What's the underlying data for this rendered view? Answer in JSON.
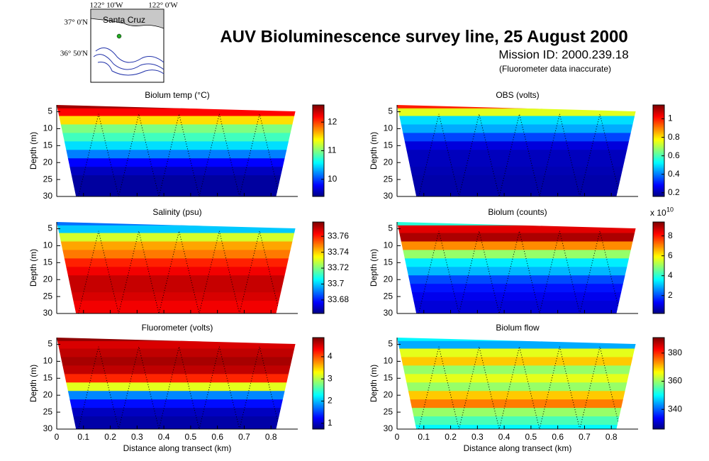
{
  "header": {
    "title": "AUV Bioluminescence survey line, 25 August 2000",
    "mission": "Mission ID: 2000.239.18",
    "note": "(Fluorometer data inaccurate)"
  },
  "map": {
    "lon_labels": [
      "122° 10'W",
      "122° 0'W"
    ],
    "lat_labels": [
      "37° 0'N",
      "36° 50'N"
    ],
    "place": "Santa Cruz"
  },
  "chart_data": [
    {
      "type": "heatmap",
      "title": "Biolum temp (°C)",
      "xlim": [
        0,
        0.9
      ],
      "xticks": [
        0,
        0.1,
        0.2,
        0.3,
        0.4,
        0.5,
        0.6,
        0.7,
        0.8
      ],
      "xticklabels": false,
      "ylim": [
        3,
        30
      ],
      "invert_y": true,
      "yticks": [
        5,
        10,
        15,
        20,
        25,
        30
      ],
      "ylabel": "Depth (m)",
      "y": [
        3,
        5,
        7.5,
        10,
        12.5,
        15,
        17.5,
        20,
        22.5,
        25,
        27.5,
        30
      ],
      "values": [
        12.5,
        12.2,
        11.5,
        11.0,
        10.8,
        10.5,
        10.2,
        9.8,
        9.6,
        9.5,
        9.5,
        9.5
      ],
      "clim": [
        9.4,
        12.6
      ],
      "cticks": [
        10,
        11,
        12
      ]
    },
    {
      "type": "heatmap",
      "title": "OBS (volts)",
      "xlim": [
        0,
        0.9
      ],
      "xticks": [
        0,
        0.1,
        0.2,
        0.3,
        0.4,
        0.5,
        0.6,
        0.7,
        0.8
      ],
      "xticklabels": false,
      "ylim": [
        3,
        30
      ],
      "invert_y": true,
      "yticks": [
        5,
        10,
        15,
        20,
        25,
        30
      ],
      "ylabel": "Depth (m)",
      "y": [
        3,
        5,
        7.5,
        10,
        12.5,
        15,
        17.5,
        20,
        22.5,
        25,
        27.5,
        30
      ],
      "values": [
        1.0,
        0.75,
        0.5,
        0.45,
        0.35,
        0.25,
        0.22,
        0.22,
        0.21,
        0.2,
        0.2,
        0.2
      ],
      "clim": [
        0.16,
        1.15
      ],
      "cticks": [
        0.2,
        0.4,
        0.6,
        0.8,
        1
      ]
    },
    {
      "type": "heatmap",
      "title": "Salinity (psu)",
      "xlim": [
        0,
        0.9
      ],
      "xticks": [
        0,
        0.1,
        0.2,
        0.3,
        0.4,
        0.5,
        0.6,
        0.7,
        0.8
      ],
      "xticklabels": false,
      "ylim": [
        3,
        30
      ],
      "invert_y": true,
      "yticks": [
        5,
        10,
        15,
        20,
        25,
        30
      ],
      "ylabel": "Depth (m)",
      "y": [
        3,
        5,
        7.5,
        10,
        12.5,
        15,
        17.5,
        20,
        22.5,
        25,
        27.5,
        30
      ],
      "values": [
        33.69,
        33.7,
        33.73,
        33.745,
        33.75,
        33.76,
        33.765,
        33.77,
        33.77,
        33.768,
        33.765,
        33.765
      ],
      "clim": [
        33.663,
        33.778
      ],
      "cticks": [
        33.68,
        33.7,
        33.72,
        33.74,
        33.76
      ]
    },
    {
      "type": "heatmap",
      "title": "Biolum (counts)",
      "xlim": [
        0,
        0.9
      ],
      "xticks": [
        0,
        0.1,
        0.2,
        0.3,
        0.4,
        0.5,
        0.6,
        0.7,
        0.8
      ],
      "xticklabels": false,
      "ylim": [
        3,
        30
      ],
      "invert_y": true,
      "yticks": [
        5,
        10,
        15,
        20,
        25,
        30
      ],
      "ylabel": "Depth (m)",
      "y": [
        3,
        5,
        7.5,
        10,
        12.5,
        15,
        17.5,
        20,
        22.5,
        25,
        27.5,
        30
      ],
      "values": [
        4,
        8.5,
        9,
        7,
        5,
        3.5,
        3,
        2,
        1.5,
        1.2,
        1,
        1
      ],
      "clim": [
        0.2,
        9.4
      ],
      "cticks": [
        2,
        4,
        6,
        8
      ],
      "cscale": "x 10",
      "cscale_exponent": "10"
    },
    {
      "type": "heatmap",
      "title": "Fluorometer (volts)",
      "xlim": [
        0,
        0.9
      ],
      "xticks": [
        0,
        0.1,
        0.2,
        0.3,
        0.4,
        0.5,
        0.6,
        0.7,
        0.8
      ],
      "xticklabels": true,
      "xlabel": "Distance along transect (km)",
      "ylim": [
        3,
        30
      ],
      "invert_y": true,
      "yticks": [
        5,
        10,
        15,
        20,
        25,
        30
      ],
      "ylabel": "Depth (m)",
      "y": [
        3,
        5,
        7.5,
        10,
        12.5,
        15,
        17.5,
        20,
        22.5,
        25,
        27.5,
        30
      ],
      "values": [
        4.8,
        4.5,
        4.6,
        4.7,
        4.6,
        4.2,
        3.2,
        1.8,
        1.3,
        1.0,
        0.9,
        0.9
      ],
      "clim": [
        0.74,
        4.86
      ],
      "cticks": [
        1,
        2,
        3,
        4
      ]
    },
    {
      "type": "heatmap",
      "title": "Biolum flow",
      "xlim": [
        0,
        0.9
      ],
      "xticks": [
        0,
        0.1,
        0.2,
        0.3,
        0.4,
        0.5,
        0.6,
        0.7,
        0.8
      ],
      "xticklabels": true,
      "xlabel": "Distance along transect (km)",
      "ylim": [
        3,
        30
      ],
      "invert_y": true,
      "yticks": [
        5,
        10,
        15,
        20,
        25,
        30
      ],
      "ylabel": "Depth (m)",
      "y": [
        3,
        5,
        7.5,
        10,
        12.5,
        15,
        17.5,
        20,
        22.5,
        25,
        27.5,
        30
      ],
      "values": [
        350,
        345,
        365,
        370,
        360,
        365,
        360,
        370,
        375,
        360,
        355,
        350
      ],
      "clim": [
        326,
        391
      ],
      "cticks": [
        340,
        360,
        380
      ]
    }
  ]
}
